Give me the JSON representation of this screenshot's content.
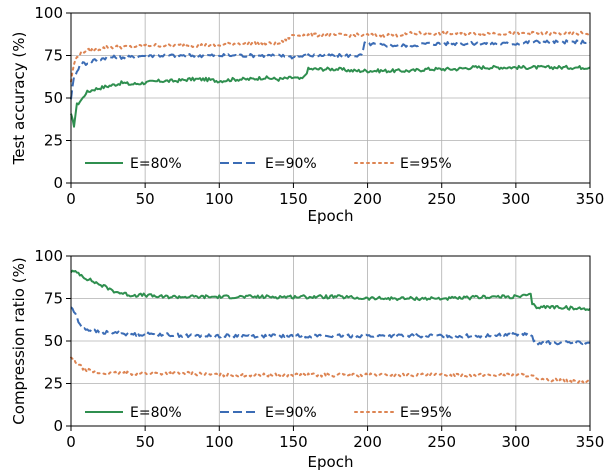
{
  "chart_data": [
    {
      "type": "line",
      "xlabel": "Epoch",
      "ylabel": "Test accuracy (%)",
      "xlim": [
        0,
        350
      ],
      "ylim": [
        0,
        100
      ],
      "xticks": [
        "0",
        "50",
        "100",
        "150",
        "200",
        "250",
        "300",
        "350"
      ],
      "yticks": [
        "0",
        "25",
        "50",
        "75",
        "100"
      ],
      "grid": true,
      "legend": {
        "placement": "lower-center",
        "columns": 3
      },
      "series": [
        {
          "name": "E=80%",
          "color": "#2f8f4f",
          "style": "solid",
          "x": [
            0,
            2,
            4,
            6,
            8,
            10,
            15,
            20,
            25,
            30,
            35,
            40,
            50,
            60,
            70,
            80,
            90,
            100,
            110,
            120,
            130,
            140,
            150,
            155,
            157,
            160,
            170,
            180,
            190,
            200,
            210,
            220,
            230,
            240,
            250,
            260,
            270,
            280,
            290,
            300,
            310,
            320,
            330,
            340,
            350
          ],
          "y": [
            40,
            34,
            46,
            48,
            50,
            53,
            55,
            56,
            57,
            58,
            59,
            58,
            59,
            60,
            60,
            61,
            61,
            60,
            61,
            61,
            62,
            61,
            62,
            61,
            62,
            67,
            67,
            67,
            66,
            66,
            66,
            66,
            66,
            67,
            67,
            67,
            68,
            68,
            68,
            68,
            68,
            68,
            68,
            68,
            68
          ]
        },
        {
          "name": "E=90%",
          "color": "#3b6cb5",
          "style": "dashed",
          "x": [
            0,
            2,
            4,
            6,
            8,
            10,
            15,
            20,
            25,
            30,
            40,
            50,
            60,
            70,
            80,
            90,
            100,
            110,
            120,
            130,
            140,
            150,
            160,
            170,
            180,
            190,
            196,
            198,
            200,
            210,
            220,
            230,
            240,
            250,
            260,
            270,
            280,
            290,
            300,
            310,
            320,
            330,
            340,
            350
          ],
          "y": [
            50,
            62,
            66,
            69,
            71,
            70,
            72,
            73,
            74,
            74,
            74,
            75,
            75,
            75,
            75,
            75,
            75,
            75,
            75,
            75,
            75,
            74,
            75,
            75,
            75,
            75,
            75,
            82,
            82,
            81,
            81,
            81,
            82,
            82,
            82,
            82,
            82,
            82,
            82,
            83,
            83,
            83,
            83,
            83
          ]
        },
        {
          "name": "E=95%",
          "color": "#dd8452",
          "style": "dotted",
          "x": [
            0,
            2,
            4,
            6,
            8,
            10,
            15,
            20,
            25,
            30,
            40,
            50,
            60,
            70,
            80,
            90,
            100,
            110,
            120,
            130,
            140,
            150,
            160,
            170,
            180,
            190,
            200,
            210,
            220,
            230,
            240,
            250,
            260,
            270,
            280,
            290,
            300,
            310,
            320,
            330,
            340,
            350
          ],
          "y": [
            60,
            70,
            74,
            76,
            77,
            78,
            78,
            79,
            80,
            80,
            80,
            81,
            81,
            81,
            81,
            81,
            81,
            82,
            82,
            82,
            82,
            87,
            87,
            87,
            87,
            87,
            87,
            87,
            87,
            88,
            88,
            88,
            88,
            88,
            88,
            88,
            88,
            88,
            88,
            88,
            88,
            88
          ]
        }
      ]
    },
    {
      "type": "line",
      "xlabel": "Epoch",
      "ylabel": "Compression ratio (%)",
      "xlim": [
        0,
        350
      ],
      "ylim": [
        0,
        100
      ],
      "xticks": [
        "0",
        "50",
        "100",
        "150",
        "200",
        "250",
        "300",
        "350"
      ],
      "yticks": [
        "0",
        "25",
        "50",
        "75",
        "100"
      ],
      "grid": true,
      "legend": {
        "placement": "lower-center",
        "columns": 3
      },
      "series": [
        {
          "name": "E=80%",
          "color": "#2f8f4f",
          "style": "solid",
          "x": [
            0,
            5,
            10,
            15,
            20,
            25,
            30,
            35,
            40,
            50,
            60,
            80,
            100,
            120,
            140,
            160,
            180,
            200,
            220,
            240,
            260,
            280,
            300,
            310,
            311,
            313,
            320,
            330,
            340,
            350
          ],
          "y": [
            91,
            90,
            87,
            85,
            83,
            81,
            79,
            78,
            77,
            77,
            76,
            76,
            76,
            76,
            76,
            76,
            76,
            75,
            75,
            75,
            75,
            76,
            76,
            77,
            72,
            70,
            70,
            70,
            69,
            69
          ]
        },
        {
          "name": "E=90%",
          "color": "#3b6cb5",
          "style": "dashed",
          "x": [
            0,
            3,
            5,
            8,
            10,
            15,
            20,
            30,
            40,
            50,
            60,
            80,
            100,
            120,
            140,
            160,
            180,
            200,
            220,
            240,
            260,
            280,
            300,
            310,
            312,
            315,
            320,
            330,
            340,
            350
          ],
          "y": [
            70,
            66,
            61,
            58,
            57,
            56,
            55,
            55,
            54,
            54,
            54,
            53,
            53,
            53,
            53,
            53,
            53,
            53,
            53,
            53,
            53,
            53,
            54,
            54,
            50,
            49,
            49,
            49,
            49,
            49
          ]
        },
        {
          "name": "E=95%",
          "color": "#dd8452",
          "style": "dotted",
          "x": [
            0,
            3,
            5,
            8,
            10,
            15,
            20,
            30,
            40,
            50,
            60,
            80,
            100,
            120,
            140,
            160,
            180,
            200,
            220,
            240,
            260,
            280,
            300,
            310,
            315,
            320,
            330,
            340,
            350
          ],
          "y": [
            40,
            38,
            36,
            34,
            33,
            32,
            31,
            31,
            31,
            31,
            31,
            31,
            30,
            30,
            30,
            30,
            30,
            30,
            30,
            30,
            30,
            30,
            30,
            30,
            27,
            27,
            27,
            26,
            26
          ]
        }
      ]
    }
  ]
}
